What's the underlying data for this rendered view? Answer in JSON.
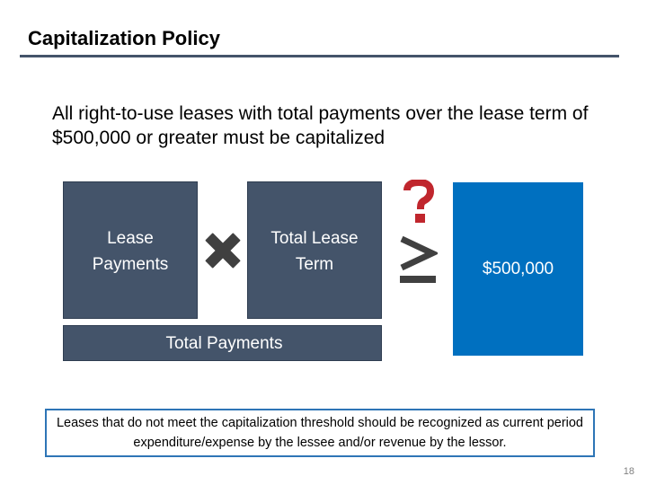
{
  "slide": {
    "title": "Capitalization Policy",
    "policy_text": "All right-to-use leases with total payments over the lease term of $500,000 or greater must be capitalized",
    "page_number": "18"
  },
  "diagram": {
    "lease_payments_label": "Lease Payments",
    "total_lease_term_label": "Total Lease Term",
    "total_payments_label": "Total Payments",
    "threshold_value": "$500,000",
    "operator_multiply_icon": "times-icon",
    "operator_compare_icon": "greater-than-or-equal-icon",
    "question_icon": "question-mark-icon"
  },
  "note": {
    "text": "Leases that do not meet the capitalization threshold should be recognized as current period expenditure/expense by the lessee and/or revenue by the lessor."
  },
  "colors": {
    "dark_box": "#44546a",
    "threshold_box": "#0070c0",
    "question_mark": "#c0262d",
    "operator_icons": "#404040",
    "note_border": "#2e75b6"
  }
}
